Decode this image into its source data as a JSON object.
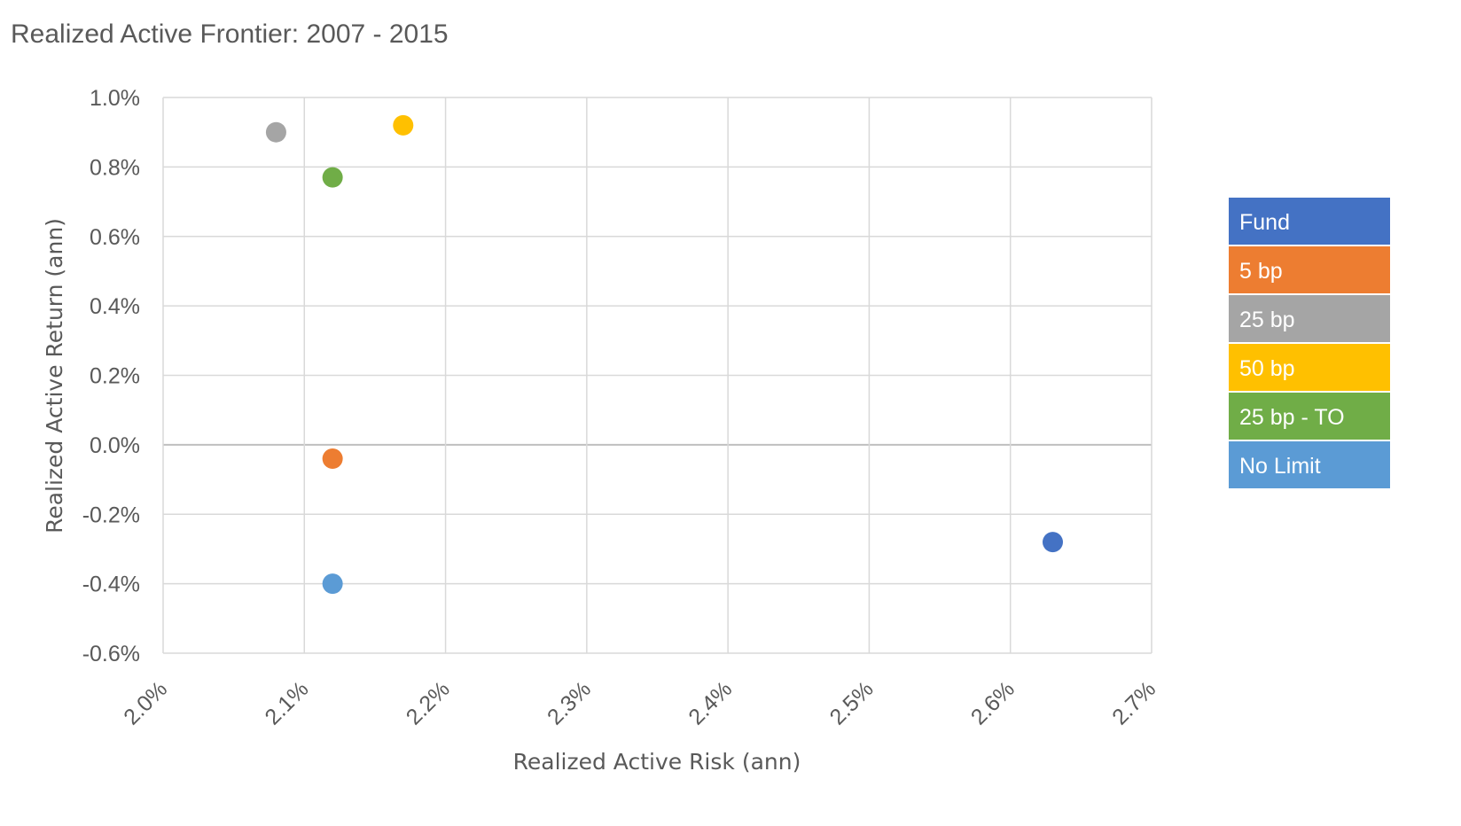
{
  "chart_data": {
    "type": "scatter",
    "title": "Realized Active Frontier: 2007 - 2015",
    "xlabel": "Realized Active Risk (ann)",
    "ylabel": "Realized Active Return (ann)",
    "xlim": [
      2.0,
      2.7
    ],
    "ylim": [
      -0.6,
      1.0
    ],
    "x_ticks": [
      2.0,
      2.1,
      2.2,
      2.3,
      2.4,
      2.5,
      2.6,
      2.7
    ],
    "y_ticks": [
      -0.6,
      -0.4,
      -0.2,
      0.0,
      0.2,
      0.4,
      0.6,
      0.8,
      1.0
    ],
    "x_tick_labels": [
      "2.0%",
      "2.1%",
      "2.2%",
      "2.3%",
      "2.4%",
      "2.5%",
      "2.6%",
      "2.7%"
    ],
    "y_tick_labels": [
      "-0.6%",
      "-0.4%",
      "-0.2%",
      "0.0%",
      "0.2%",
      "0.4%",
      "0.6%",
      "0.8%",
      "1.0%"
    ],
    "grid": true,
    "legend_position": "right",
    "series": [
      {
        "name": "Fund",
        "color": "#4472C4",
        "x": 2.63,
        "y": -0.28
      },
      {
        "name": "5 bp",
        "color": "#ED7D31",
        "x": 2.12,
        "y": -0.04
      },
      {
        "name": "25 bp",
        "color": "#A5A5A5",
        "x": 2.08,
        "y": 0.9
      },
      {
        "name": "50 bp",
        "color": "#FFC000",
        "x": 2.17,
        "y": 0.92
      },
      {
        "name": "25 bp - TO",
        "color": "#70AD47",
        "x": 2.12,
        "y": 0.77
      },
      {
        "name": "No Limit",
        "color": "#5B9BD5",
        "x": 2.12,
        "y": -0.4
      }
    ]
  }
}
